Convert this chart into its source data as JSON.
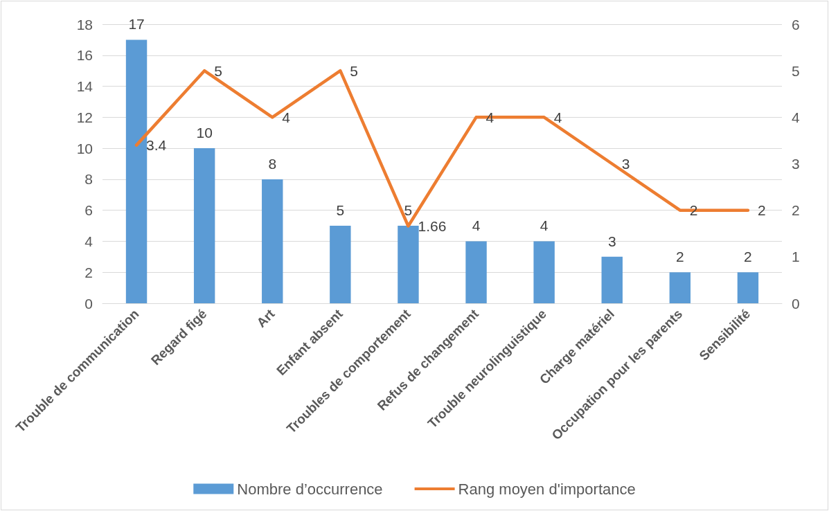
{
  "chart_data": {
    "type": "bar",
    "categories": [
      "Trouble de communication",
      "Regard figé",
      "Art",
      "Enfant absent",
      "Troubles de comportement",
      "Refus de changement",
      "Trouble neurolinguistique",
      "Charge matériel",
      "Occupation pour les parents",
      "Sensibilité"
    ],
    "series": [
      {
        "name": "Nombre d’occurrence",
        "color": "#5b9bd5",
        "values": [
          17,
          10,
          8,
          5,
          5,
          4,
          4,
          3,
          2,
          2
        ]
      },
      {
        "name": "Rang moyen d'importance",
        "type": "line",
        "axis": "y2",
        "color": "#ed7d31",
        "values": [
          3.4,
          5,
          4,
          5,
          1.66,
          4,
          4,
          3,
          2,
          2
        ]
      }
    ],
    "ylim": [
      0,
      18
    ],
    "yticks": [
      0,
      2,
      4,
      6,
      8,
      10,
      12,
      14,
      16,
      18
    ],
    "y2lim": [
      0,
      6
    ],
    "y2ticks": [
      0,
      1,
      2,
      3,
      4,
      5,
      6
    ],
    "grid": "y",
    "legend": "bottom",
    "data_labels": true,
    "marker": "none",
    "line_style": "solid"
  }
}
